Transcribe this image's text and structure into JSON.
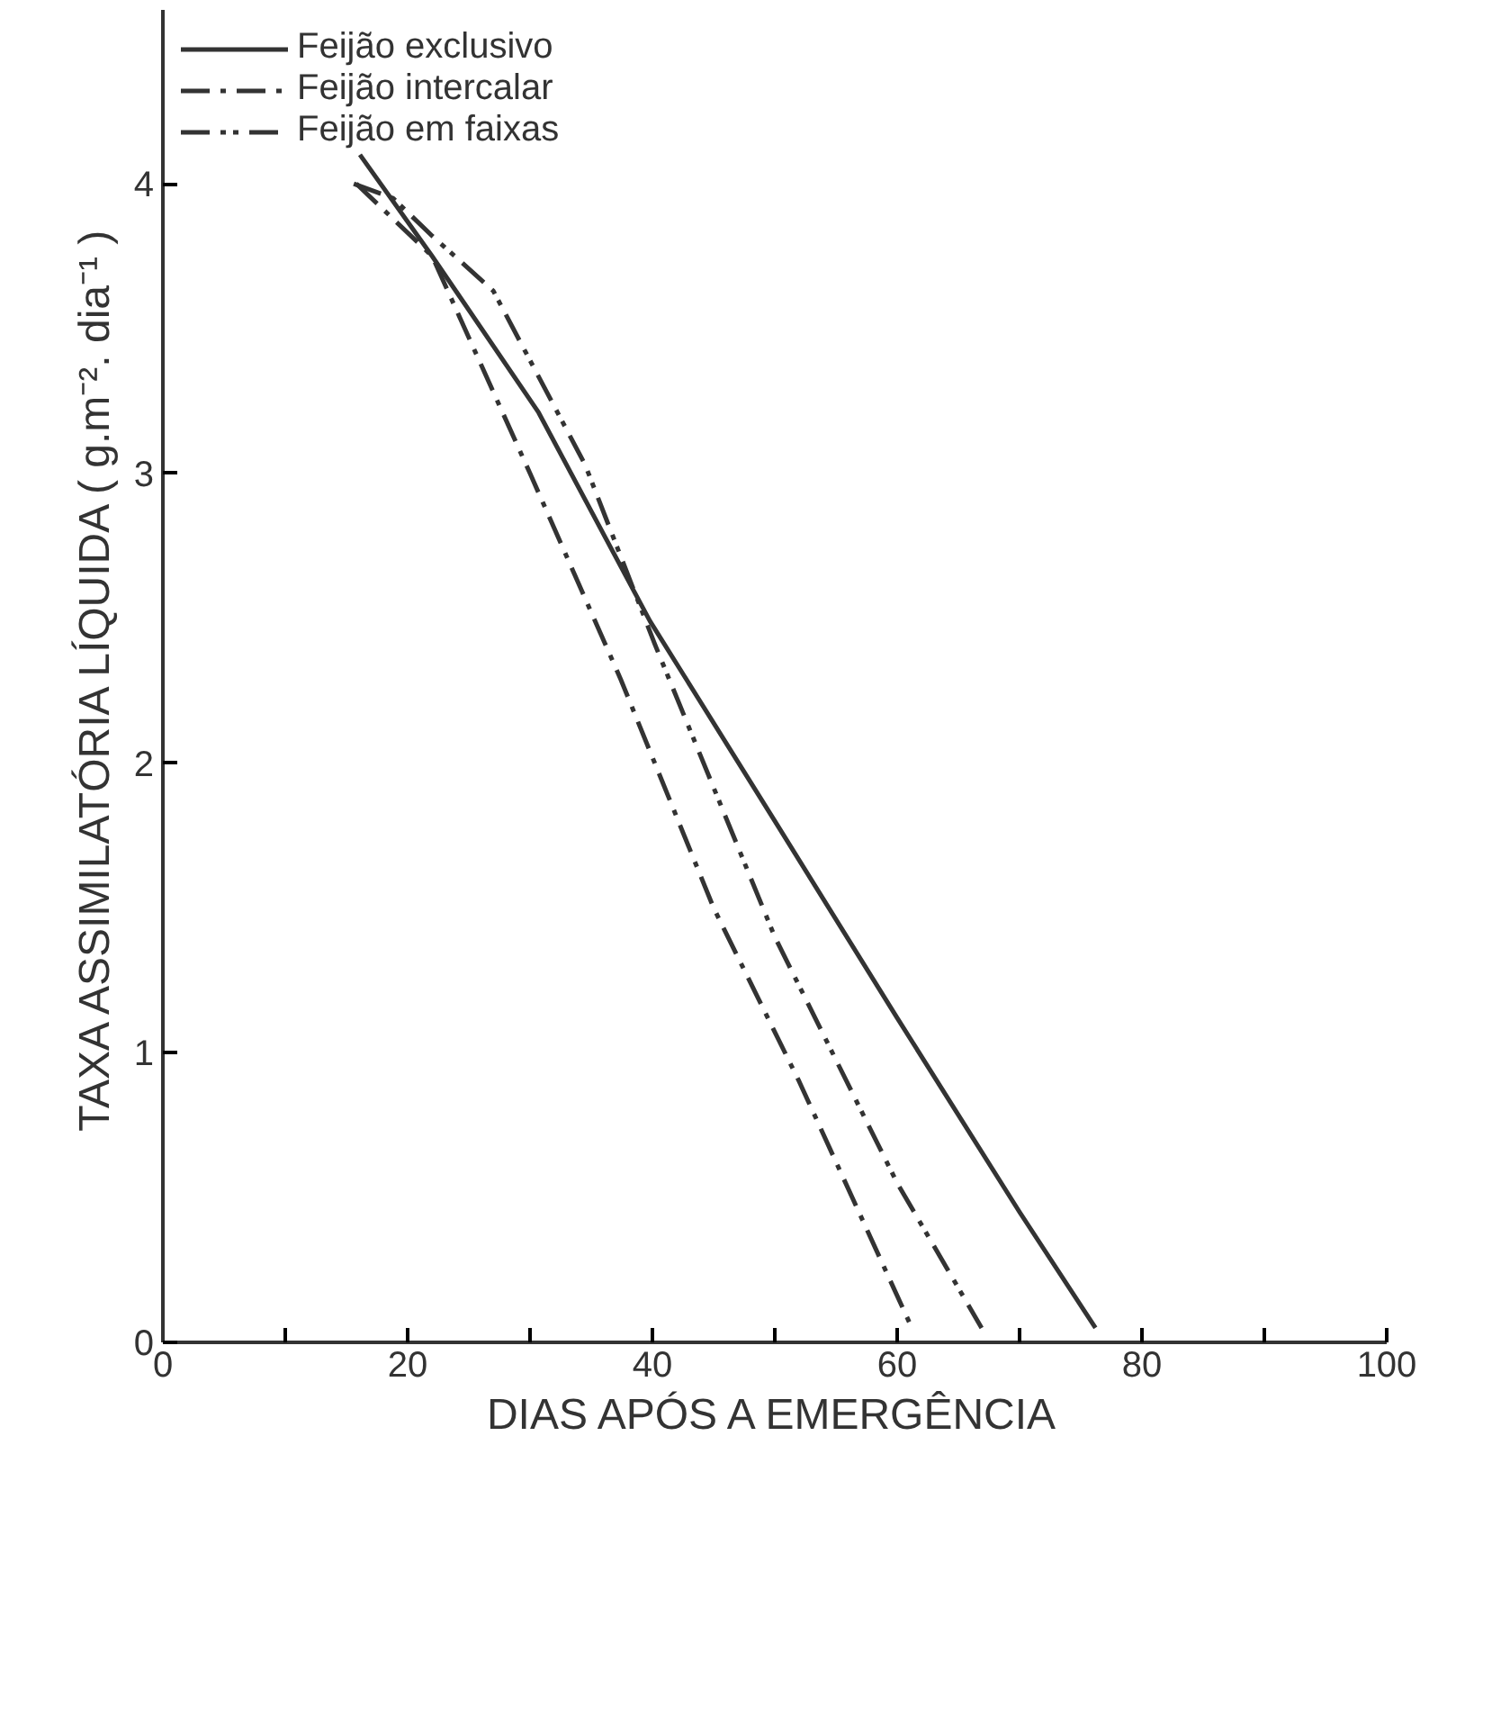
{
  "chart_data": {
    "type": "line",
    "xlabel": "DIAS APÓS A EMERGÊNCIA",
    "ylabel": "TAXA ASSIMILATÓRIA LÍQUIDA ( g.m⁻². dia⁻¹ )",
    "xlim": [
      0,
      100
    ],
    "ylim": [
      0,
      4.6
    ],
    "xticks": [
      0,
      {
        "value": 10,
        "label": null
      },
      20,
      {
        "value": 30,
        "label": null
      },
      40,
      {
        "value": 50,
        "label": null
      },
      60,
      {
        "value": 70,
        "label": null
      },
      80,
      {
        "value": 90,
        "label": null
      },
      100
    ],
    "yticks": [
      0,
      1,
      2,
      3,
      4
    ],
    "grid": false,
    "legend": "top left",
    "marker": "none",
    "series": [
      {
        "name": "Feijão exclusivo",
        "color": "#333333",
        "line_style": "solid",
        "x": [
          16.1,
          22,
          30.7,
          39.8,
          50,
          60,
          70,
          76.2
        ],
        "values": [
          4.1,
          3.75,
          3.21,
          2.49,
          1.8,
          1.12,
          0.45,
          0.05
        ]
      },
      {
        "name": "Feijão intercalar",
        "color": "#333333",
        "line_style": "dashdot",
        "x": [
          15.8,
          22,
          30,
          37.4,
          45,
          52,
          61.2
        ],
        "values": [
          4.0,
          3.75,
          3.0,
          2.29,
          1.5,
          0.9,
          0.05
        ]
      },
      {
        "name": "Feijão em faixas",
        "color": "#333333",
        "line_style": "dashdotdot",
        "x": [
          15.6,
          18.8,
          22,
          27,
          34.5,
          40.2,
          50,
          60,
          66.9
        ],
        "values": [
          4.0,
          3.95,
          3.82,
          3.63,
          3.03,
          2.41,
          1.4,
          0.55,
          0.05
        ]
      }
    ]
  }
}
